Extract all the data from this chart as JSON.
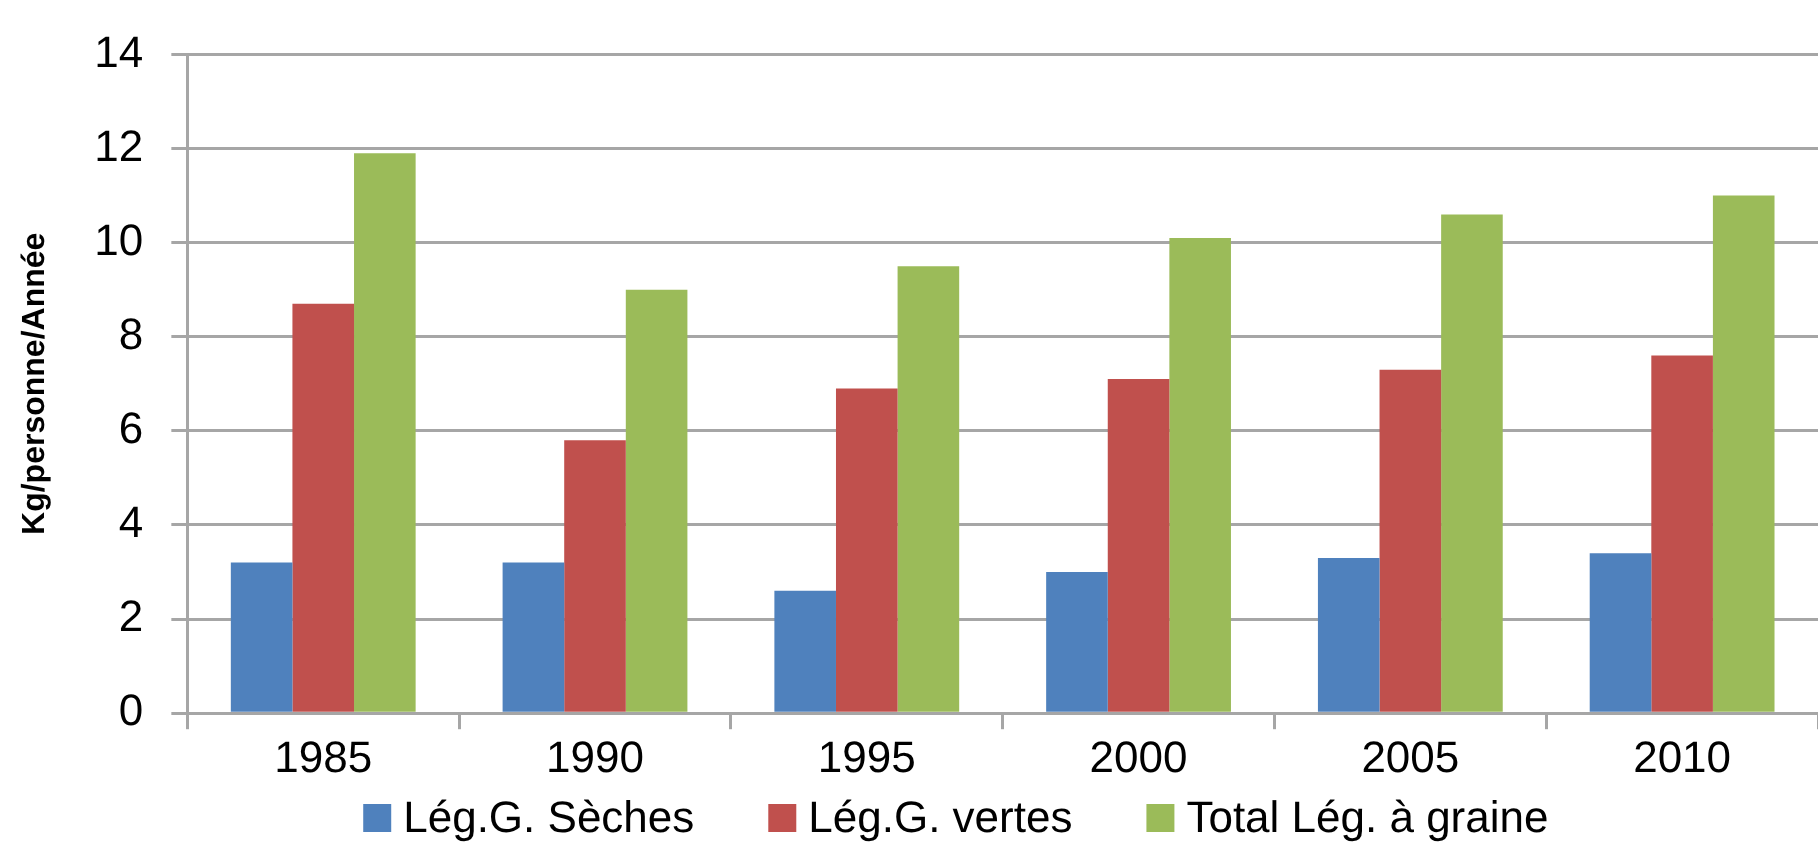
{
  "chart_data": {
    "type": "bar",
    "ylabel": "Kg/personne/Année",
    "categories": [
      "1985",
      "1990",
      "1995",
      "2000",
      "2005",
      "2010"
    ],
    "series": [
      {
        "name": "Lég.G. Sèches",
        "color": "#4f81bd",
        "values": [
          3.2,
          3.2,
          2.6,
          3.0,
          3.3,
          3.4
        ]
      },
      {
        "name": "Lég.G. vertes",
        "color": "#c0504d",
        "values": [
          8.7,
          5.8,
          6.9,
          7.1,
          7.3,
          7.6
        ]
      },
      {
        "name": "Total Lég. à graine",
        "color": "#9bbb59",
        "values": [
          11.9,
          9.0,
          9.5,
          10.1,
          10.6,
          11.0
        ]
      }
    ],
    "ylim": [
      0,
      14
    ],
    "yticks": [
      0,
      2,
      4,
      6,
      8,
      10,
      12,
      14
    ],
    "grid": "y",
    "legend": "bottom"
  }
}
